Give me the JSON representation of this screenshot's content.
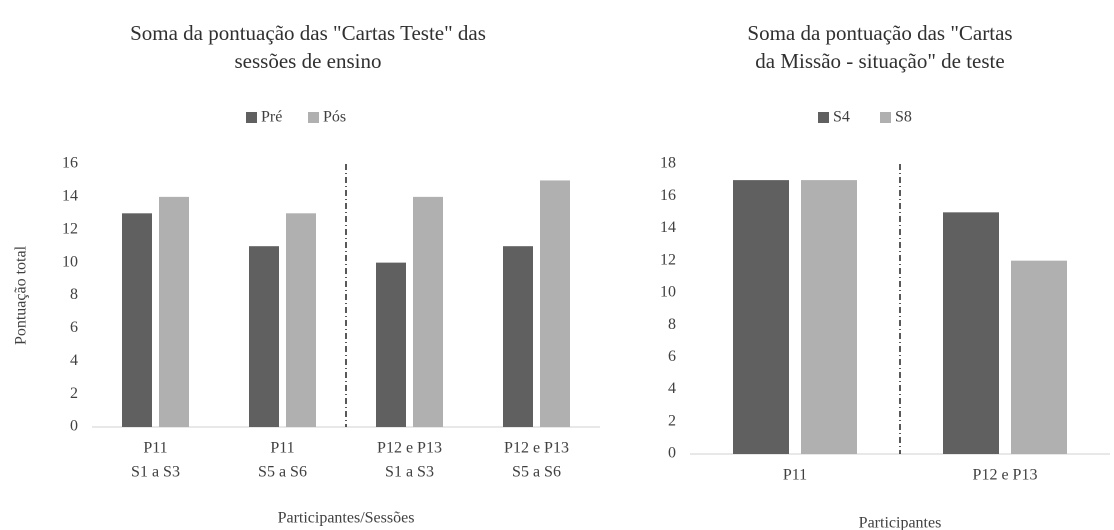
{
  "chart_data": [
    {
      "type": "bar",
      "title": [
        "Soma da pontuação das \"Cartas Teste\" das",
        "sessões de ensino"
      ],
      "categories": [
        [
          "P11",
          "S1 a S3"
        ],
        [
          "P11",
          "S5 a S6"
        ],
        [
          "P12 e P13",
          "S1 a S3"
        ],
        [
          "P12 e P13",
          "S5 a S6"
        ]
      ],
      "series": [
        {
          "name": "Pré",
          "color": "#606060",
          "values": [
            13,
            11,
            10,
            11
          ]
        },
        {
          "name": "Pós",
          "color": "#b0b0b0",
          "values": [
            14,
            13,
            14,
            15
          ]
        }
      ],
      "ylim": [
        0,
        16
      ],
      "yticks": [
        0,
        2,
        4,
        6,
        8,
        10,
        12,
        14,
        16
      ],
      "ylabel": "Pontuação total",
      "xlabel": "Participantes/Sessões",
      "separator_after": 1,
      "legend": "top"
    },
    {
      "type": "bar",
      "title": [
        "Soma da pontuação das \"Cartas",
        "da Missão - situação\" de teste"
      ],
      "categories": [
        [
          "P11"
        ],
        [
          "P12 e P13"
        ]
      ],
      "series": [
        {
          "name": "S4",
          "color": "#606060",
          "values": [
            17,
            15
          ]
        },
        {
          "name": "S8",
          "color": "#b0b0b0",
          "values": [
            17,
            12
          ]
        }
      ],
      "ylim": [
        0,
        18
      ],
      "yticks": [
        0,
        2,
        4,
        6,
        8,
        10,
        12,
        14,
        16,
        18
      ],
      "xlabel": "Participantes",
      "separator_after": 0,
      "legend": "top"
    }
  ]
}
